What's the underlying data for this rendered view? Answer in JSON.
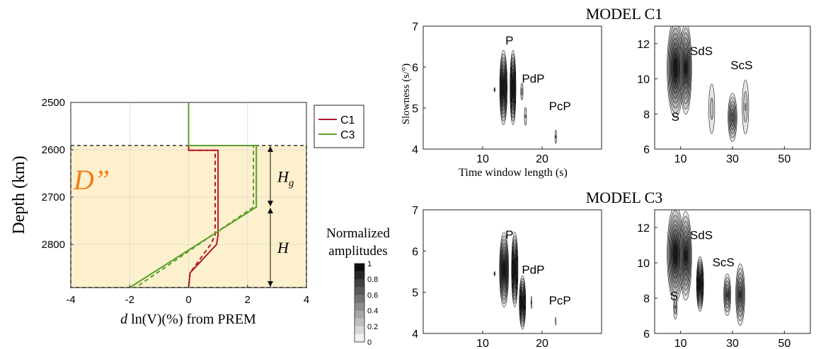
{
  "colors": {
    "c1": "#b2182b",
    "c3": "#5aa02c",
    "dlayer_fill": "#fdf0cc",
    "dlayer_label": "#f07f1a"
  },
  "chart_data": [
    {
      "id": "velocity_profile",
      "type": "line",
      "xlabel": "d ln(V)(%) from PREM",
      "xlabel_italic": "d",
      "xlabel_rest": " ln(V)(%) from PREM",
      "ylabel": "Depth (km)",
      "xlim": [
        -4,
        4
      ],
      "ylim": [
        2500,
        2891
      ],
      "y_inverted": true,
      "xticks": [
        -4,
        -2,
        0,
        2,
        4
      ],
      "yticks": [
        2500,
        2600,
        2700,
        2800
      ],
      "grid": true,
      "legend": {
        "position": "outside-right",
        "entries": [
          "C1",
          "C3"
        ]
      },
      "shaded_region": {
        "depth_top": 2591,
        "depth_bottom": 2891,
        "label": "D”"
      },
      "annotations": [
        {
          "text": "H",
          "sub": "g",
          "depth_from": 2591,
          "depth_to": 2721
        },
        {
          "text": "H",
          "sub": "",
          "depth_from": 2721,
          "depth_to": 2891
        }
      ],
      "series": [
        {
          "name": "C1",
          "style": "solid",
          "x": [
            0,
            0,
            1,
            1,
            0.95,
            0.05,
            0
          ],
          "y": [
            2500,
            2601,
            2601,
            2780,
            2800,
            2860,
            2891
          ]
        },
        {
          "name": "C1",
          "style": "dashed",
          "in_legend": false,
          "x": [
            0,
            0,
            0.9,
            0.9,
            0.75,
            0.05,
            0
          ],
          "y": [
            2500,
            2601,
            2601,
            2780,
            2800,
            2860,
            2891
          ]
        },
        {
          "name": "C3",
          "style": "solid",
          "x": [
            0,
            0,
            2.3,
            2.3,
            -2
          ],
          "y": [
            2500,
            2591,
            2591,
            2721,
            2891
          ]
        },
        {
          "name": "C3",
          "style": "dashed",
          "in_legend": false,
          "x": [
            0,
            0,
            2.2,
            2.2,
            -1.8
          ],
          "y": [
            2500,
            2591,
            2591,
            2721,
            2891
          ]
        }
      ]
    },
    {
      "id": "c1_left",
      "type": "heatmap",
      "panel_title": "MODEL C1",
      "ylabel": "Slowness (s/°)",
      "xlabel": "Time window length (s)",
      "xlim": [
        0,
        30
      ],
      "ylim": [
        4,
        7
      ],
      "xticks": [
        10,
        20
      ],
      "yticks": [
        4,
        5,
        6,
        7
      ],
      "phases": [
        {
          "label": "P",
          "x": 14.5,
          "y": 6.55
        },
        {
          "label": "PdP",
          "x": 18.5,
          "y": 5.62
        },
        {
          "label": "PcP",
          "x": 23,
          "y": 4.95
        }
      ],
      "blobs": [
        {
          "x": 13.5,
          "y": 5.5,
          "rx": 0.7,
          "ry": 1.0,
          "peak": 1.0
        },
        {
          "x": 15.1,
          "y": 5.5,
          "rx": 0.55,
          "ry": 1.0,
          "peak": 1.0
        },
        {
          "x": 12.0,
          "y": 5.45,
          "rx": 0.12,
          "ry": 0.08,
          "peak": 0.3
        },
        {
          "x": 16.6,
          "y": 5.4,
          "rx": 0.3,
          "ry": 0.32,
          "peak": 0.25
        },
        {
          "x": 17.2,
          "y": 4.8,
          "rx": 0.32,
          "ry": 0.4,
          "peak": 0.2
        },
        {
          "x": 22.3,
          "y": 4.3,
          "rx": 0.25,
          "ry": 0.3,
          "peak": 0.2
        }
      ]
    },
    {
      "id": "c1_right",
      "type": "heatmap",
      "xlim": [
        0,
        60
      ],
      "ylim": [
        6,
        13
      ],
      "xticks": [
        10,
        30,
        50
      ],
      "yticks": [
        6,
        8,
        10,
        12
      ],
      "phases": [
        {
          "label": "SdS",
          "x": 18,
          "y": 11.35
        },
        {
          "label": "ScS",
          "x": 33.5,
          "y": 10.55
        },
        {
          "label": "S",
          "x": 8,
          "y": 7.6
        }
      ],
      "blobs": [
        {
          "x": 8,
          "y": 10.6,
          "rx": 3.5,
          "ry": 3.1,
          "peak": 1.0
        },
        {
          "x": 12,
          "y": 10.6,
          "rx": 2.5,
          "ry": 2.9,
          "peak": 0.9
        },
        {
          "x": 22,
          "y": 8.3,
          "rx": 1.8,
          "ry": 2.2,
          "peak": 0.25
        },
        {
          "x": 30,
          "y": 7.8,
          "rx": 2.0,
          "ry": 1.6,
          "peak": 0.65
        },
        {
          "x": 35,
          "y": 8.4,
          "rx": 1.8,
          "ry": 2.2,
          "peak": 0.3
        }
      ]
    },
    {
      "id": "c3_left",
      "type": "heatmap",
      "panel_title": "MODEL C3",
      "xlim": [
        0,
        30
      ],
      "ylim": [
        4,
        7
      ],
      "xticks": [
        10,
        20
      ],
      "yticks": [
        4,
        5,
        6,
        7
      ],
      "phases": [
        {
          "label": "P",
          "x": 14.5,
          "y": 6.3
        },
        {
          "label": "PdP",
          "x": 18.5,
          "y": 5.45
        },
        {
          "label": "PcP",
          "x": 23,
          "y": 4.7
        }
      ],
      "blobs": [
        {
          "x": 13.6,
          "y": 5.55,
          "rx": 0.85,
          "ry": 1.0,
          "peak": 1.0
        },
        {
          "x": 15.4,
          "y": 5.55,
          "rx": 0.6,
          "ry": 1.0,
          "peak": 1.0
        },
        {
          "x": 12.0,
          "y": 5.45,
          "rx": 0.12,
          "ry": 0.08,
          "peak": 0.3
        },
        {
          "x": 16.7,
          "y": 4.75,
          "rx": 0.6,
          "ry": 0.72,
          "peak": 0.95
        },
        {
          "x": 18.2,
          "y": 4.75,
          "rx": 0.15,
          "ry": 0.28,
          "peak": 0.2
        },
        {
          "x": 22.3,
          "y": 4.3,
          "rx": 0.15,
          "ry": 0.25,
          "peak": 0.15
        }
      ]
    },
    {
      "id": "c3_right",
      "type": "heatmap",
      "xlim": [
        0,
        60
      ],
      "ylim": [
        6,
        13
      ],
      "xticks": [
        10,
        30,
        50
      ],
      "yticks": [
        6,
        8,
        10,
        12
      ],
      "phases": [
        {
          "label": "SdS",
          "x": 18,
          "y": 11.35
        },
        {
          "label": "ScS",
          "x": 26.5,
          "y": 9.8
        },
        {
          "label": "S",
          "x": 7.5,
          "y": 7.9
        }
      ],
      "blobs": [
        {
          "x": 8,
          "y": 10.5,
          "rx": 3.5,
          "ry": 3.0,
          "peak": 1.0
        },
        {
          "x": 12,
          "y": 10.4,
          "rx": 2.5,
          "ry": 2.8,
          "peak": 0.9
        },
        {
          "x": 17.5,
          "y": 8.8,
          "rx": 1.5,
          "ry": 1.7,
          "peak": 1.0
        },
        {
          "x": 28,
          "y": 8.2,
          "rx": 1.6,
          "ry": 1.4,
          "peak": 0.6
        },
        {
          "x": 33,
          "y": 8.2,
          "rx": 2.0,
          "ry": 2.0,
          "peak": 0.7
        },
        {
          "x": 8,
          "y": 7.5,
          "rx": 1.0,
          "ry": 1.0,
          "peak": 0.3
        }
      ]
    }
  ],
  "colorbar": {
    "title_lines": [
      "Normalized",
      "amplitudes"
    ],
    "ticks": [
      "1",
      "0.8",
      "0.6",
      "0.4",
      "0.2",
      "0"
    ],
    "levels": 10
  }
}
